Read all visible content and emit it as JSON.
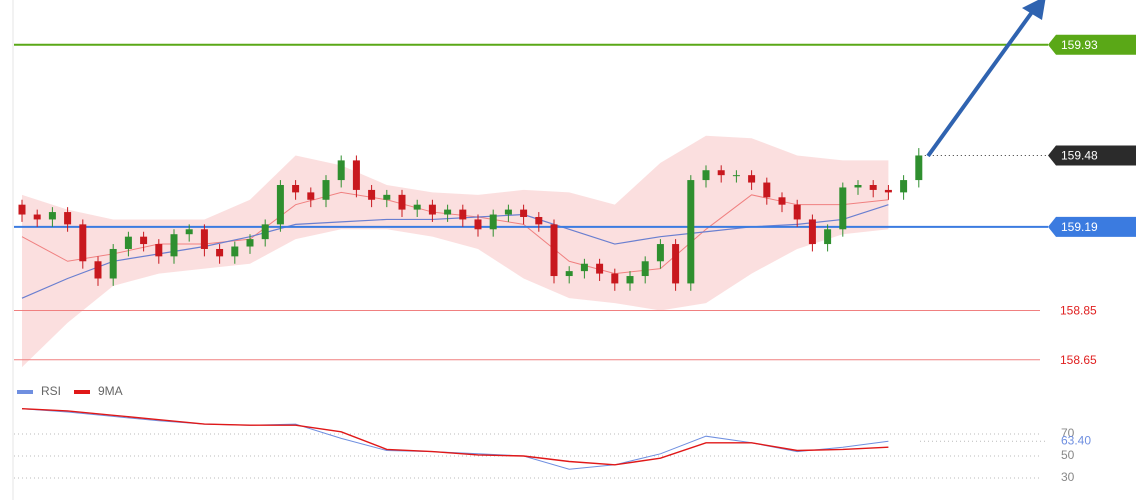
{
  "chart_data": {
    "type": "candlestick",
    "ylim": [
      158.6,
      160.12
    ],
    "up_color": "#2f8f2f",
    "down_color": "#c8181e",
    "candles": {
      "open": [
        159.28,
        159.24,
        159.22,
        159.25,
        159.2,
        159.05,
        158.98,
        159.1,
        159.15,
        159.12,
        159.07,
        159.16,
        159.18,
        159.1,
        159.07,
        159.11,
        159.14,
        159.2,
        159.36,
        159.33,
        159.3,
        159.38,
        159.46,
        159.34,
        159.3,
        159.32,
        159.26,
        159.28,
        159.24,
        159.26,
        159.22,
        159.18,
        159.24,
        159.26,
        159.23,
        159.2,
        158.99,
        159.01,
        159.04,
        159.0,
        158.96,
        158.99,
        159.05,
        159.12,
        158.96,
        159.38,
        159.42,
        159.4,
        159.4,
        159.37,
        159.31,
        159.28,
        159.22,
        159.12,
        159.18,
        159.35,
        159.36,
        159.34,
        159.33,
        159.38
      ],
      "high": [
        159.3,
        159.26,
        159.27,
        159.27,
        159.22,
        159.07,
        159.12,
        159.17,
        159.17,
        159.14,
        159.18,
        159.2,
        159.2,
        159.12,
        159.13,
        159.16,
        159.22,
        159.38,
        159.38,
        159.35,
        159.4,
        159.48,
        159.48,
        159.36,
        159.34,
        159.34,
        159.3,
        159.3,
        159.28,
        159.28,
        159.24,
        159.26,
        159.28,
        159.28,
        159.25,
        159.22,
        159.03,
        159.06,
        159.06,
        159.02,
        159.01,
        159.07,
        159.14,
        159.14,
        159.4,
        159.44,
        159.44,
        159.42,
        159.42,
        159.39,
        159.33,
        159.3,
        159.24,
        159.2,
        159.37,
        159.38,
        159.38,
        159.36,
        159.4,
        159.51
      ],
      "low": [
        159.21,
        159.19,
        159.19,
        159.17,
        159.02,
        158.95,
        158.95,
        159.07,
        159.09,
        159.04,
        159.04,
        159.13,
        159.07,
        159.04,
        159.04,
        159.08,
        159.11,
        159.17,
        159.3,
        159.27,
        159.27,
        159.35,
        159.31,
        159.27,
        159.27,
        159.23,
        159.23,
        159.21,
        159.21,
        159.19,
        159.15,
        159.15,
        159.21,
        159.2,
        159.17,
        158.96,
        158.96,
        158.98,
        158.97,
        158.93,
        158.93,
        158.96,
        159.02,
        158.93,
        158.93,
        159.35,
        159.37,
        159.37,
        159.34,
        159.28,
        159.25,
        159.19,
        159.09,
        159.09,
        159.15,
        159.32,
        159.31,
        159.3,
        159.3,
        159.35
      ],
      "close": [
        159.24,
        159.22,
        159.25,
        159.2,
        159.05,
        158.98,
        159.1,
        159.15,
        159.12,
        159.07,
        159.16,
        159.18,
        159.1,
        159.07,
        159.11,
        159.14,
        159.2,
        159.36,
        159.33,
        159.3,
        159.38,
        159.46,
        159.34,
        159.3,
        159.32,
        159.26,
        159.28,
        159.24,
        159.26,
        159.22,
        159.18,
        159.24,
        159.26,
        159.23,
        159.2,
        158.99,
        159.01,
        159.04,
        159.0,
        158.96,
        158.99,
        159.05,
        159.12,
        158.96,
        159.38,
        159.42,
        159.4,
        159.4,
        159.37,
        159.31,
        159.28,
        159.22,
        159.12,
        159.18,
        159.35,
        159.36,
        159.34,
        159.33,
        159.38,
        159.48
      ]
    },
    "indicators": {
      "x": [
        0,
        3,
        6,
        9,
        12,
        15,
        18,
        21,
        24,
        27,
        30,
        33,
        36,
        39,
        42,
        45,
        48,
        51,
        54,
        57
      ],
      "band_color": "#f9c9c9",
      "bb_upper": [
        159.32,
        159.26,
        159.22,
        159.22,
        159.22,
        159.3,
        159.48,
        159.44,
        159.36,
        159.33,
        159.32,
        159.34,
        159.33,
        159.28,
        159.45,
        159.56,
        159.55,
        159.48,
        159.46,
        159.46
      ],
      "bb_lower": [
        158.62,
        158.8,
        158.95,
        159.0,
        159.02,
        159.04,
        159.14,
        159.18,
        159.18,
        159.15,
        159.1,
        158.98,
        158.9,
        158.88,
        158.85,
        158.88,
        159.0,
        159.1,
        159.16,
        159.18
      ],
      "ma_fast_color": "#f08080",
      "ma_fast": [
        159.15,
        159.05,
        159.08,
        159.12,
        159.12,
        159.14,
        159.28,
        159.33,
        159.3,
        159.25,
        159.23,
        159.2,
        159.05,
        159.0,
        159.02,
        159.18,
        159.32,
        159.28,
        159.28,
        159.3
      ],
      "ma_slow_color": "#6a7fd0",
      "ma_slow": [
        158.9,
        158.98,
        159.05,
        159.08,
        159.11,
        159.15,
        159.2,
        159.21,
        159.22,
        159.22,
        159.23,
        159.24,
        159.18,
        159.12,
        159.15,
        159.17,
        159.19,
        159.2,
        159.22,
        159.28
      ]
    },
    "levels": [
      {
        "value": 159.93,
        "color": "#5aa817",
        "style": "tag"
      },
      {
        "value": 159.19,
        "color": "#3b7be0",
        "style": "tag"
      },
      {
        "value": 158.85,
        "color": "#f08080",
        "style": "text"
      },
      {
        "value": 158.65,
        "color": "#f08080",
        "style": "text"
      }
    ],
    "last_price": 159.48,
    "last_price_color": "#2b2b2b",
    "rsi": {
      "ylim": [
        20,
        100
      ],
      "yticks": [
        30,
        50,
        70
      ],
      "series": [
        {
          "name": "RSI",
          "color": "#6f8fe0",
          "values": [
            93,
            90,
            86,
            82,
            79,
            78,
            79,
            66,
            55,
            54,
            52,
            50,
            38,
            42,
            52,
            68,
            62,
            54,
            58,
            63.4
          ]
        },
        {
          "name": "9MA",
          "color": "#e01818",
          "values": [
            93,
            91,
            87,
            83,
            79,
            78,
            78,
            72,
            56,
            54,
            51,
            50,
            45,
            42,
            48,
            62,
            62,
            55,
            56,
            58
          ]
        }
      ],
      "last_label": {
        "value": 63.4,
        "label": "63.40"
      }
    }
  }
}
